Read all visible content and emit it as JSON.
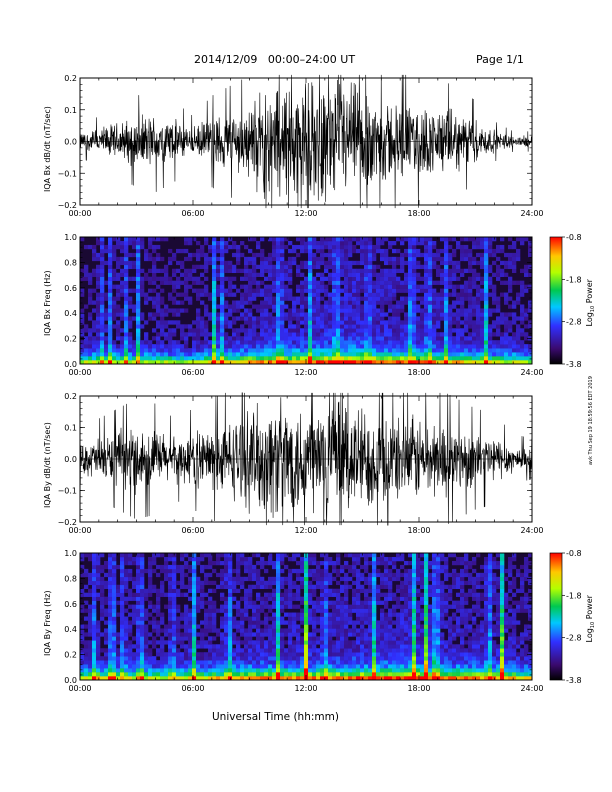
{
  "header": {
    "date_range": "2014/12/09   00:00–24:00 UT",
    "page": "Page 1/1"
  },
  "xlabel": "Universal Time (hh:mm)",
  "footer_stamp": "avk Thu Sep 19 18:59:56 EDT 2019",
  "colorbar": {
    "label_main": "Log",
    "label_sub": "10",
    "label_tail": " Power",
    "ticks": [
      "-0.8",
      "-1.8",
      "-2.8",
      "-3.8"
    ],
    "range": [
      -3.8,
      -0.8
    ]
  },
  "chart_data": [
    {
      "type": "line",
      "ylabel": "IQA Bx dB/dt (nT/sec)",
      "x_ticks": [
        "00:00",
        "06:00",
        "12:00",
        "18:00",
        "24:00"
      ],
      "x_range_hours": [
        0,
        24
      ],
      "y_ticks": [
        "0.2",
        "0.1",
        "0.0",
        "−0.1",
        "−0.2"
      ],
      "ylim": [
        -0.2,
        0.2
      ],
      "series": [
        {
          "x_hours": [
            0,
            1,
            2,
            3,
            4,
            5,
            6,
            7,
            8,
            9,
            9.5,
            10,
            11,
            12,
            13,
            14,
            15,
            16,
            17,
            18,
            19,
            20,
            21,
            22,
            23,
            24
          ],
          "amplitude": [
            0.03,
            0.05,
            0.07,
            0.09,
            0.1,
            0.08,
            0.05,
            0.09,
            0.11,
            0.13,
            0.18,
            0.22,
            0.22,
            0.22,
            0.22,
            0.22,
            0.2,
            0.16,
            0.14,
            0.13,
            0.12,
            0.11,
            0.08,
            0.04,
            0.02,
            0.02
          ]
        }
      ]
    },
    {
      "type": "heatmap",
      "ylabel": "IQA Bx Freq (Hz)",
      "x_ticks": [
        "00:00",
        "06:00",
        "12:00",
        "18:00",
        "24:00"
      ],
      "x_range_hours": [
        0,
        24
      ],
      "y_ticks": [
        "1.0",
        "0.8",
        "0.6",
        "0.4",
        "0.2",
        "0.0"
      ],
      "ylim": [
        0,
        1
      ],
      "activity_hours": [
        0,
        2,
        4,
        6,
        7,
        8,
        10,
        12,
        14,
        16,
        18,
        20,
        22,
        24
      ],
      "activity_level": [
        0.25,
        0.3,
        0.25,
        0.2,
        0.35,
        0.4,
        0.55,
        0.6,
        0.75,
        0.65,
        0.55,
        0.45,
        0.3,
        0.25
      ],
      "bursts_hours": [
        1.1,
        1.6,
        2.4,
        3.1,
        7.1,
        7.5,
        10.6,
        12.2,
        13.6,
        15.3,
        17.6,
        18.5,
        19.4,
        21.6
      ],
      "bursts_strength": [
        0.5,
        0.4,
        0.5,
        0.55,
        0.7,
        0.5,
        0.6,
        0.5,
        0.6,
        0.5,
        0.7,
        0.55,
        0.5,
        0.75
      ]
    },
    {
      "type": "line",
      "ylabel": "IQA By dB/dt (nT/sec)",
      "x_ticks": [
        "00:00",
        "06:00",
        "12:00",
        "18:00",
        "24:00"
      ],
      "x_range_hours": [
        0,
        24
      ],
      "y_ticks": [
        "0.2",
        "0.1",
        "0.0",
        "−0.1",
        "−0.2"
      ],
      "ylim": [
        -0.2,
        0.2
      ],
      "series": [
        {
          "x_hours": [
            0,
            1,
            2,
            3,
            4,
            5,
            6,
            7,
            8,
            9,
            10,
            11,
            12,
            13,
            14,
            15,
            16,
            17,
            18,
            19,
            20,
            21,
            22,
            23,
            24
          ],
          "amplitude": [
            0.05,
            0.08,
            0.1,
            0.12,
            0.11,
            0.08,
            0.1,
            0.12,
            0.14,
            0.18,
            0.22,
            0.22,
            0.22,
            0.22,
            0.22,
            0.2,
            0.17,
            0.15,
            0.16,
            0.14,
            0.12,
            0.1,
            0.09,
            0.05,
            0.04
          ]
        }
      ]
    },
    {
      "type": "heatmap",
      "ylabel": "IQA By Freq (Hz)",
      "x_ticks": [
        "00:00",
        "06:00",
        "12:00",
        "18:00",
        "24:00"
      ],
      "x_range_hours": [
        0,
        24
      ],
      "y_ticks": [
        "1.0",
        "0.8",
        "0.6",
        "0.4",
        "0.2",
        "0.0"
      ],
      "ylim": [
        0,
        1
      ],
      "activity_hours": [
        0,
        2,
        4,
        6,
        7,
        8,
        10,
        12,
        14,
        16,
        18,
        20,
        22,
        24
      ],
      "activity_level": [
        0.3,
        0.35,
        0.3,
        0.35,
        0.4,
        0.5,
        0.55,
        0.55,
        0.6,
        0.65,
        0.7,
        0.55,
        0.5,
        0.35
      ],
      "bursts_hours": [
        0.8,
        1.7,
        2.3,
        3.2,
        4.9,
        6.0,
        7.9,
        10.5,
        12.0,
        13.0,
        15.6,
        17.7,
        18.4,
        18.9,
        21.7,
        22.4
      ],
      "bursts_strength": [
        0.6,
        0.8,
        0.5,
        0.7,
        0.5,
        0.85,
        0.6,
        0.7,
        0.95,
        0.5,
        0.6,
        0.85,
        0.95,
        0.8,
        0.6,
        0.95
      ]
    }
  ]
}
